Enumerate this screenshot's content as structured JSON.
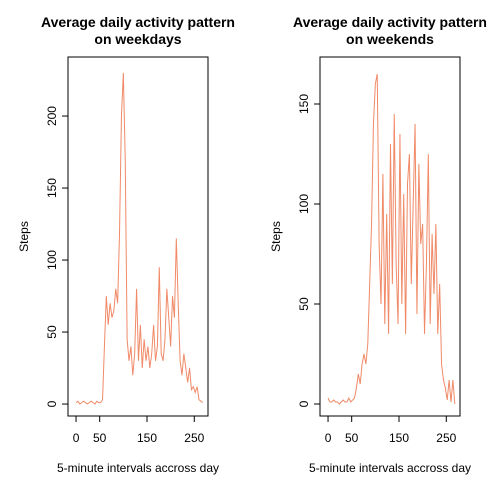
{
  "chart_data": [
    {
      "type": "line",
      "title": "Average daily activity pattern\non weekdays",
      "xlabel": "5-minute intervals accross day",
      "ylabel": "Steps",
      "color": "#f08a68",
      "x": [
        0,
        4,
        8,
        12,
        16,
        20,
        24,
        28,
        32,
        36,
        40,
        44,
        48,
        52,
        56,
        60,
        64,
        68,
        72,
        76,
        80,
        84,
        88,
        92,
        96,
        100,
        104,
        108,
        112,
        116,
        120,
        124,
        128,
        132,
        136,
        140,
        144,
        148,
        152,
        156,
        160,
        164,
        168,
        172,
        176,
        180,
        184,
        188,
        192,
        196,
        200,
        204,
        208,
        212,
        216,
        220,
        224,
        228,
        232,
        236,
        240,
        244,
        248,
        252,
        256,
        260,
        264,
        268
      ],
      "values": [
        1,
        2,
        0,
        1,
        2,
        1,
        0,
        1,
        2,
        1,
        0,
        2,
        1,
        1,
        3,
        40,
        75,
        55,
        70,
        60,
        65,
        80,
        70,
        120,
        200,
        230,
        170,
        45,
        30,
        40,
        20,
        35,
        80,
        30,
        55,
        25,
        45,
        30,
        40,
        25,
        35,
        55,
        30,
        40,
        95,
        35,
        30,
        45,
        80,
        60,
        40,
        75,
        60,
        115,
        70,
        30,
        20,
        35,
        25,
        15,
        25,
        10,
        12,
        8,
        12,
        3,
        2,
        1
      ],
      "xlim": [
        -17,
        279
      ],
      "xticks": [
        0,
        50,
        150,
        250
      ],
      "ylim": [
        -8.3,
        241
      ],
      "yticks": [
        0,
        50,
        100,
        150,
        200
      ]
    },
    {
      "type": "line",
      "title": "Average daily activity pattern\non weekends",
      "xlabel": "5-minute intervals accross day",
      "ylabel": "Steps",
      "color": "#f08a68",
      "x": [
        0,
        4,
        8,
        12,
        16,
        20,
        24,
        28,
        32,
        36,
        40,
        44,
        48,
        52,
        56,
        60,
        64,
        68,
        72,
        76,
        80,
        84,
        88,
        92,
        96,
        100,
        104,
        108,
        112,
        116,
        120,
        124,
        128,
        132,
        136,
        140,
        144,
        148,
        152,
        156,
        160,
        164,
        168,
        172,
        176,
        180,
        184,
        188,
        192,
        196,
        200,
        204,
        208,
        212,
        216,
        220,
        224,
        228,
        232,
        236,
        240,
        244,
        248,
        252,
        256,
        260,
        264,
        268
      ],
      "values": [
        3,
        1,
        1,
        2,
        1,
        1,
        0,
        1,
        2,
        1,
        1,
        3,
        1,
        2,
        3,
        8,
        15,
        10,
        20,
        25,
        20,
        30,
        60,
        90,
        140,
        160,
        165,
        80,
        50,
        115,
        40,
        95,
        35,
        130,
        60,
        145,
        70,
        40,
        135,
        50,
        105,
        35,
        110,
        125,
        60,
        100,
        140,
        45,
        120,
        80,
        90,
        35,
        70,
        125,
        40,
        85,
        55,
        90,
        35,
        60,
        20,
        12,
        8,
        2,
        12,
        1,
        12,
        0
      ],
      "xlim": [
        -17,
        279
      ],
      "xticks": [
        0,
        50,
        150,
        250
      ],
      "ylim": [
        -6,
        173.5
      ],
      "yticks": [
        0,
        50,
        100,
        150
      ]
    }
  ]
}
